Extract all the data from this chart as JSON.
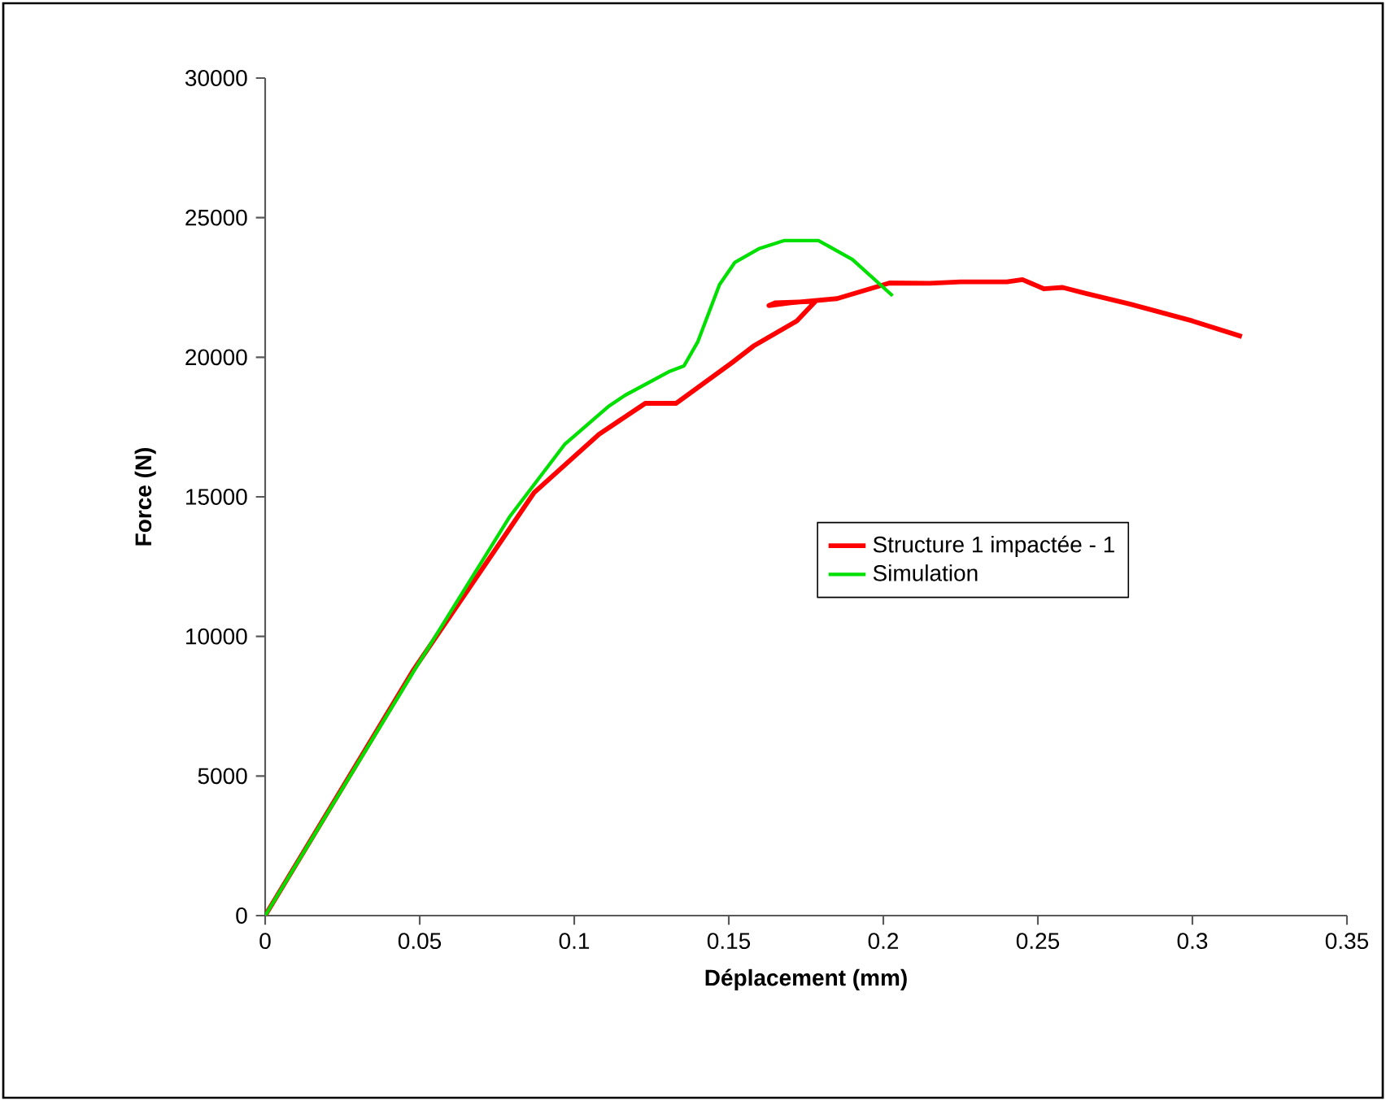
{
  "chart_data": {
    "type": "line",
    "xlabel": "Déplacement (mm)",
    "ylabel": "Force (N)",
    "xlim": [
      0,
      0.35
    ],
    "xticks": [
      0,
      0.05,
      0.1,
      0.15,
      0.2,
      0.25,
      0.3,
      0.35
    ],
    "ylim": [
      0,
      30000
    ],
    "yticks": [
      0,
      5000,
      10000,
      15000,
      20000,
      25000,
      30000
    ],
    "grid": false,
    "legend": "right",
    "marker": "none",
    "line_style": "solid",
    "series": [
      {
        "name": "Structure 1 impactée - 1",
        "color": "#ff0000",
        "x": [
          0,
          0.048,
          0.087,
          0.108,
          0.123,
          0.133,
          0.151,
          0.158,
          0.172,
          0.178,
          0.165,
          0.163,
          0.17,
          0.185,
          0.202,
          0.215,
          0.225,
          0.24,
          0.245,
          0.252,
          0.258,
          0.265,
          0.28,
          0.3,
          0.316
        ],
        "values": [
          0,
          8800,
          15150,
          17240,
          18350,
          18350,
          19800,
          20400,
          21300,
          22000,
          21950,
          21850,
          21950,
          22100,
          22660,
          22650,
          22700,
          22700,
          22780,
          22450,
          22500,
          22300,
          21900,
          21300,
          20740
        ]
      },
      {
        "name": "Simulation",
        "color": "#00e000",
        "x": [
          0,
          0.048,
          0.079,
          0.097,
          0.111,
          0.1165,
          0.131,
          0.1355,
          0.14,
          0.147,
          0.152,
          0.16,
          0.168,
          0.179,
          0.19,
          0.203
        ],
        "values": [
          0,
          8740,
          14270,
          16890,
          18230,
          18640,
          19500,
          19690,
          20560,
          22600,
          23400,
          23900,
          24180,
          24180,
          23500,
          22200
        ]
      }
    ]
  }
}
